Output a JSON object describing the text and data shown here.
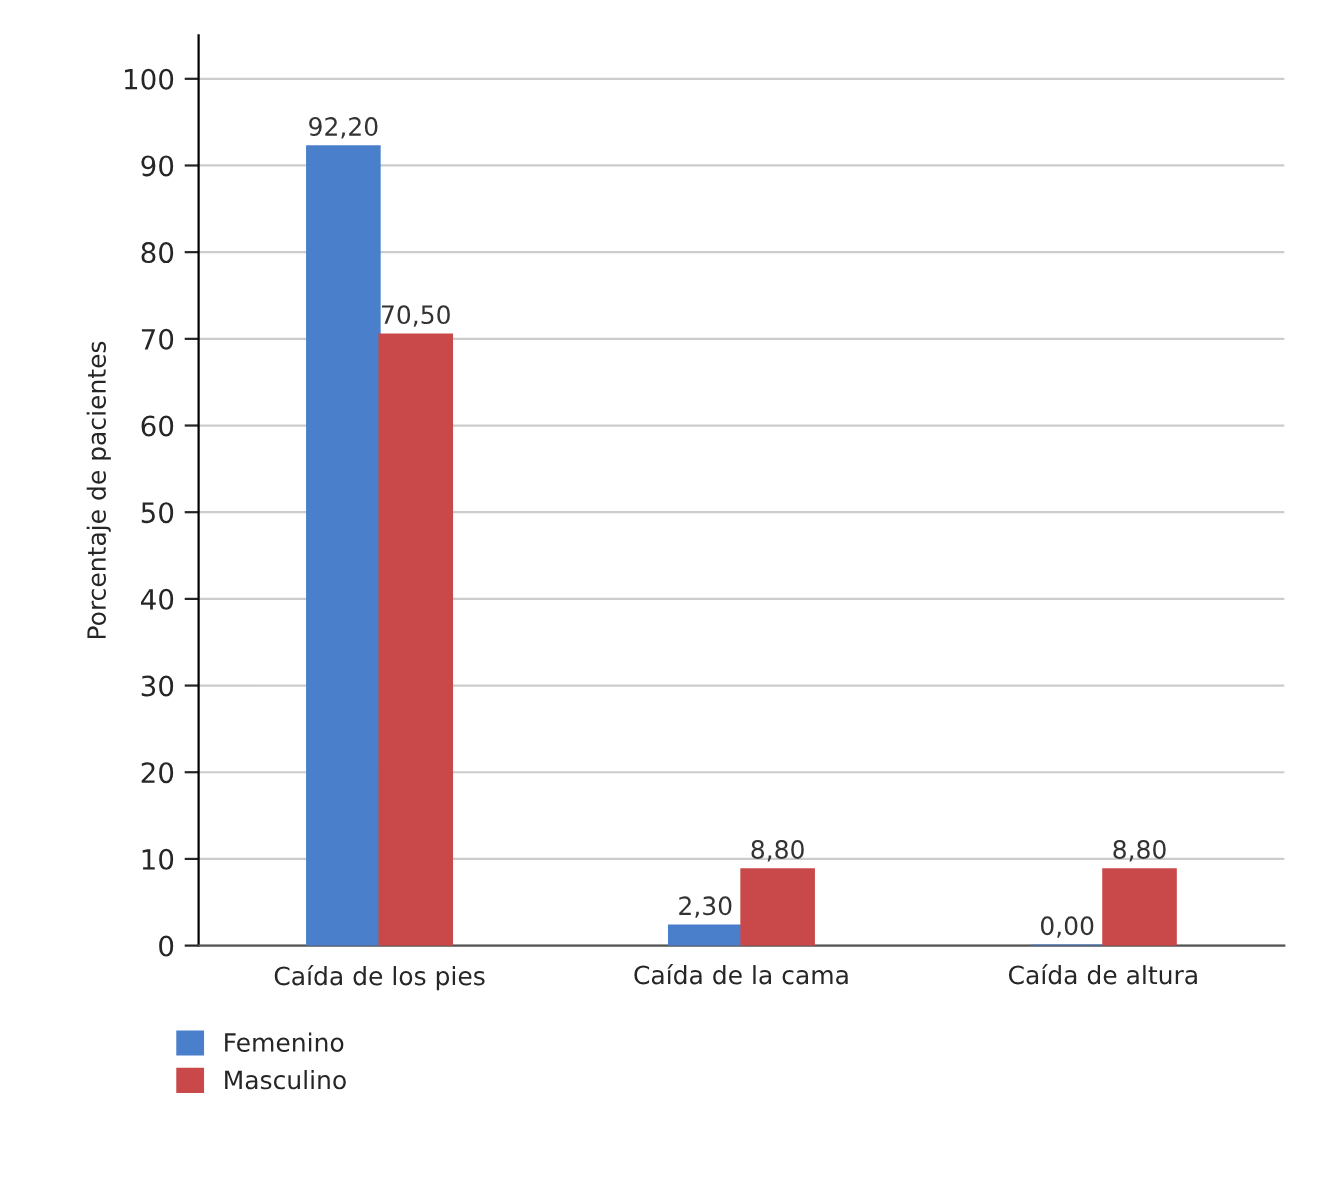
{
  "chart_data": {
    "type": "bar",
    "ylabel": "Porcentaje de pacientes",
    "categories": [
      "Caída de los pies",
      "Caída de la cama",
      "Caída de altura"
    ],
    "series": [
      {
        "name": "Femenino",
        "color": "#4a7fcb",
        "values": [
          92.2,
          2.3,
          0.0
        ],
        "value_labels": [
          "92,20",
          "2,30",
          "0,00"
        ]
      },
      {
        "name": "Masculino",
        "color": "#c9494a",
        "values": [
          70.5,
          8.8,
          8.8
        ],
        "value_labels": [
          "70,50",
          "8,80",
          "8,80"
        ]
      }
    ],
    "ylim": [
      0,
      105
    ],
    "yticks": [
      0,
      10,
      20,
      30,
      40,
      50,
      60,
      70,
      80,
      90,
      100
    ],
    "grid": "y",
    "legend": "bottom left"
  }
}
